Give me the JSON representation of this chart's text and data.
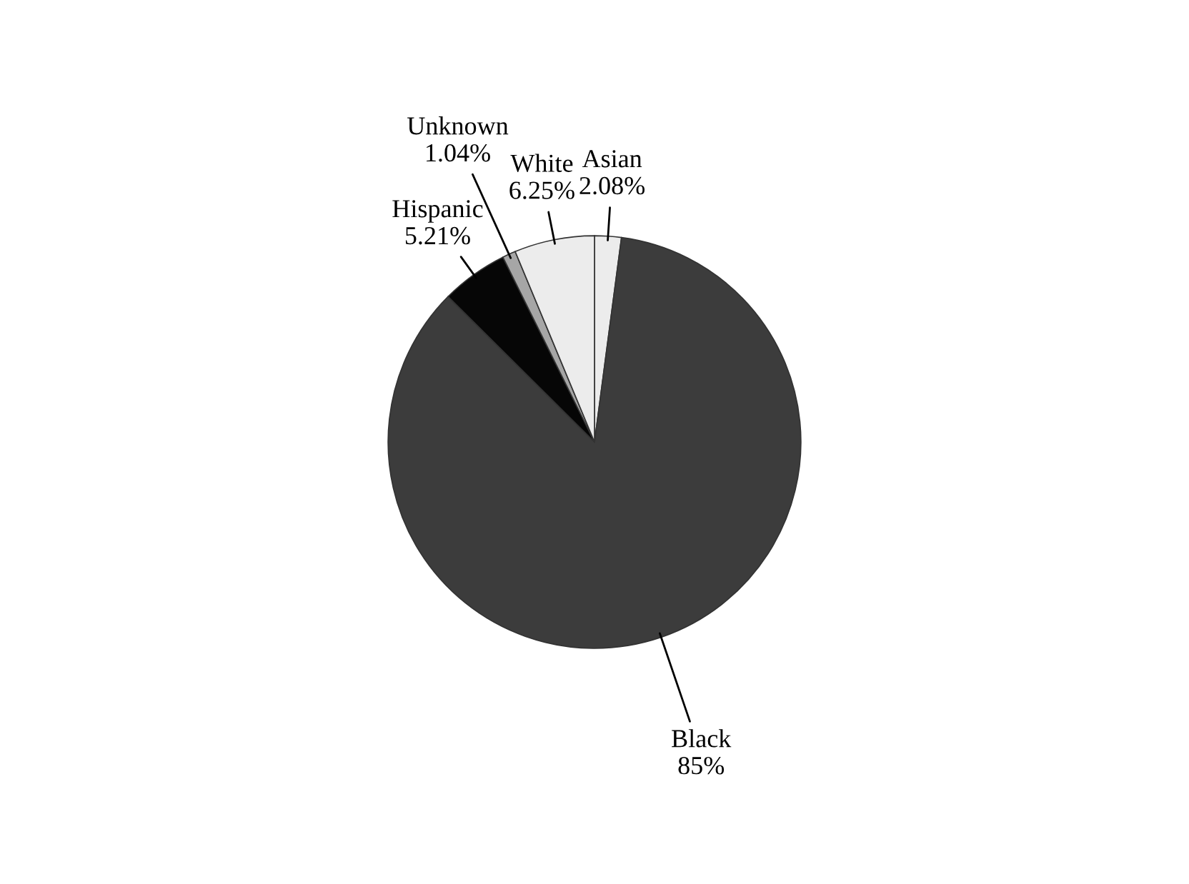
{
  "chart_data": {
    "type": "pie",
    "categories": [
      "Asian",
      "Black",
      "Hispanic",
      "Unknown",
      "White"
    ],
    "values": [
      2.08,
      85,
      5.21,
      1.04,
      6.25
    ],
    "value_labels": [
      "2.08%",
      "85%",
      "5.21%",
      "1.04%",
      "6.25%"
    ],
    "colors": [
      "#ececec",
      "#3c3c3c",
      "#060606",
      "#a6a6a6",
      "#ececec"
    ]
  }
}
